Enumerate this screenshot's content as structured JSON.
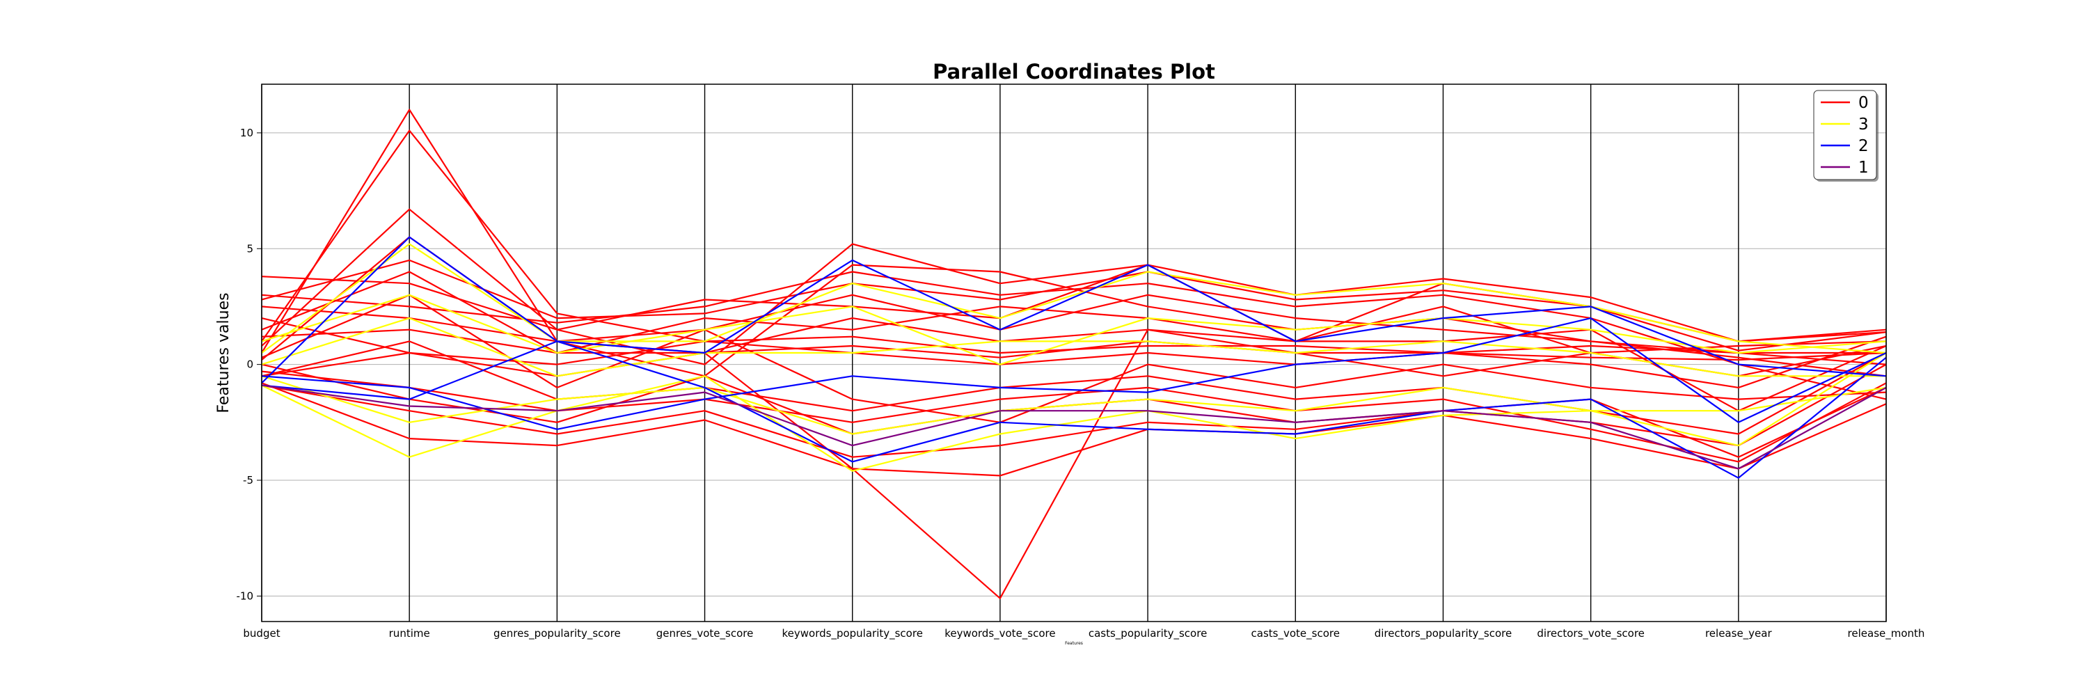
{
  "chart_data": {
    "type": "parallel_coordinates",
    "title": "Parallel Coordinates Plot",
    "xlabel": "Features",
    "ylabel": "Features values",
    "ylim": [
      -11.1,
      12.1
    ],
    "y_ticks": [
      -10,
      -5,
      0,
      5,
      10
    ],
    "grid": true,
    "legend_position": "top-right",
    "axes": [
      "budget",
      "runtime",
      "genres_popularity_score",
      "genres_vote_score",
      "keywords_popularity_score",
      "keywords_vote_score",
      "casts_popularity_score",
      "casts_vote_score",
      "directors_popularity_score",
      "directors_vote_score",
      "release_year",
      "release_month"
    ],
    "legend": [
      {
        "label": "0",
        "color": "#ff0000"
      },
      {
        "label": "3",
        "color": "#ffff00"
      },
      {
        "label": "2",
        "color": "#0000ff"
      },
      {
        "label": "1",
        "color": "#800080"
      }
    ],
    "series": [
      {
        "class": "0",
        "color": "#ff0000",
        "values": [
          0.5,
          11.0,
          1.0,
          0.5,
          0.8,
          0.3,
          1.0,
          0.5,
          0.5,
          0.3,
          0.2,
          0.5
        ]
      },
      {
        "class": "0",
        "color": "#ff0000",
        "values": [
          1.0,
          10.1,
          2.2,
          1.0,
          1.2,
          0.5,
          0.8,
          0.8,
          0.5,
          0.8,
          0.5,
          0.0
        ]
      },
      {
        "class": "0",
        "color": "#ff0000",
        "values": [
          0.8,
          6.7,
          1.5,
          0.0,
          5.2,
          3.5,
          4.3,
          1.0,
          3.5,
          2.5,
          1.0,
          1.4
        ]
      },
      {
        "class": "0",
        "color": "#ff0000",
        "values": [
          0.2,
          5.5,
          1.0,
          -0.5,
          4.3,
          4.0,
          2.5,
          1.5,
          2.0,
          1.0,
          0.5,
          0.5
        ]
      },
      {
        "class": "0",
        "color": "#ff0000",
        "values": [
          -0.5,
          0.5,
          -0.5,
          0.5,
          -4.5,
          -10.1,
          1.5,
          0.5,
          -0.5,
          0.5,
          -0.5,
          0.8
        ]
      },
      {
        "class": "0",
        "color": "#ff0000",
        "values": [
          -0.8,
          -3.2,
          -3.5,
          -2.4,
          -4.5,
          -4.8,
          -2.8,
          -3.0,
          -2.2,
          -3.2,
          -4.5,
          -1.7
        ]
      },
      {
        "class": "0",
        "color": "#ff0000",
        "values": [
          3.8,
          3.5,
          1.5,
          2.8,
          2.5,
          2.0,
          4.3,
          3.0,
          3.7,
          2.9,
          1.0,
          1.5
        ]
      },
      {
        "class": "0",
        "color": "#ff0000",
        "values": [
          2.5,
          2.0,
          1.0,
          1.5,
          3.0,
          1.5,
          3.0,
          2.0,
          1.5,
          1.0,
          0.3,
          -0.5
        ]
      },
      {
        "class": "0",
        "color": "#ff0000",
        "values": [
          1.5,
          4.0,
          0.5,
          2.0,
          1.5,
          2.5,
          2.0,
          1.0,
          2.5,
          0.5,
          0.8,
          1.0
        ]
      },
      {
        "class": "0",
        "color": "#ff0000",
        "values": [
          -0.5,
          1.0,
          -1.5,
          -1.0,
          -2.0,
          -1.0,
          -0.5,
          -1.5,
          -1.0,
          -2.0,
          -3.0,
          0.5
        ]
      },
      {
        "class": "0",
        "color": "#ff0000",
        "values": [
          0.0,
          -1.5,
          -2.5,
          -0.5,
          -3.0,
          -2.0,
          -1.5,
          -2.5,
          -2.0,
          -1.5,
          -4.0,
          -1.0
        ]
      },
      {
        "class": "0",
        "color": "#ff0000",
        "values": [
          2.0,
          0.5,
          0.0,
          1.0,
          0.5,
          0.0,
          0.5,
          0.0,
          0.5,
          0.0,
          -1.0,
          1.2
        ]
      },
      {
        "class": "0",
        "color": "#ff0000",
        "values": [
          3.0,
          2.5,
          1.8,
          2.5,
          4.0,
          3.0,
          3.5,
          2.5,
          3.0,
          2.0,
          0.0,
          -1.5
        ]
      },
      {
        "class": "0",
        "color": "#ff0000",
        "values": [
          -0.9,
          -2.0,
          -3.0,
          -2.0,
          -4.0,
          -3.5,
          -2.5,
          -2.8,
          -2.0,
          -2.5,
          -3.5,
          0.0
        ]
      },
      {
        "class": "0",
        "color": "#ff0000",
        "values": [
          1.2,
          1.5,
          0.5,
          0.5,
          2.0,
          1.0,
          1.5,
          1.0,
          1.0,
          1.5,
          -2.0,
          0.8
        ]
      },
      {
        "class": "0",
        "color": "#ff0000",
        "values": [
          0.3,
          3.0,
          -1.0,
          1.5,
          -1.5,
          -2.5,
          0.0,
          -1.0,
          0.0,
          -1.0,
          -1.5,
          -1.2
        ]
      },
      {
        "class": "0",
        "color": "#ff0000",
        "values": [
          2.8,
          4.5,
          2.0,
          2.2,
          3.5,
          2.8,
          4.0,
          2.8,
          3.2,
          2.5,
          0.6,
          1.4
        ]
      },
      {
        "class": "0",
        "color": "#ff0000",
        "values": [
          -0.3,
          -1.0,
          -2.0,
          -1.5,
          -2.5,
          -1.5,
          -1.0,
          -2.0,
          -1.5,
          -2.8,
          -4.2,
          -0.8
        ]
      },
      {
        "class": "3",
        "color": "#ffff00",
        "values": [
          -0.9,
          -4.0,
          -2.0,
          -0.5,
          -4.6,
          -3.0,
          -2.0,
          -3.2,
          -2.2,
          -2.0,
          -3.5,
          0.5
        ]
      },
      {
        "class": "3",
        "color": "#ffff00",
        "values": [
          0.5,
          5.2,
          1.0,
          1.0,
          3.5,
          2.0,
          4.0,
          3.0,
          3.5,
          2.5,
          1.0,
          0.5
        ]
      },
      {
        "class": "3",
        "color": "#ffff00",
        "values": [
          0.0,
          2.0,
          -0.5,
          0.5,
          0.5,
          1.0,
          1.0,
          0.5,
          1.0,
          0.5,
          -0.5,
          -0.5
        ]
      },
      {
        "class": "3",
        "color": "#ffff00",
        "values": [
          1.0,
          3.0,
          0.5,
          1.5,
          2.5,
          0.0,
          2.0,
          1.5,
          2.0,
          1.5,
          0.5,
          1.0
        ]
      },
      {
        "class": "3",
        "color": "#ffff00",
        "values": [
          -0.5,
          -2.5,
          -1.5,
          -1.0,
          -3.0,
          -2.0,
          -1.5,
          -2.0,
          -1.0,
          -2.0,
          -2.0,
          -1.0
        ]
      },
      {
        "class": "2",
        "color": "#0000ff",
        "values": [
          -0.9,
          -1.5,
          1.0,
          -1.0,
          -4.2,
          -2.5,
          -2.8,
          -3.0,
          -2.0,
          -1.5,
          -4.9,
          0.3
        ]
      },
      {
        "class": "2",
        "color": "#0000ff",
        "values": [
          -0.5,
          -1.0,
          -2.8,
          -1.5,
          -0.5,
          -1.0,
          -1.2,
          0.0,
          0.5,
          2.0,
          -2.5,
          0.5
        ]
      },
      {
        "class": "2",
        "color": "#0000ff",
        "values": [
          -0.8,
          5.5,
          1.0,
          0.5,
          4.5,
          1.5,
          4.3,
          1.0,
          2.0,
          2.5,
          0.0,
          -0.5
        ]
      },
      {
        "class": "1",
        "color": "#800080",
        "values": [
          -0.9,
          -1.8,
          -2.0,
          -1.2,
          -3.5,
          -2.0,
          -2.0,
          -2.5,
          -2.0,
          -2.5,
          -4.5,
          -1.0
        ]
      }
    ]
  }
}
